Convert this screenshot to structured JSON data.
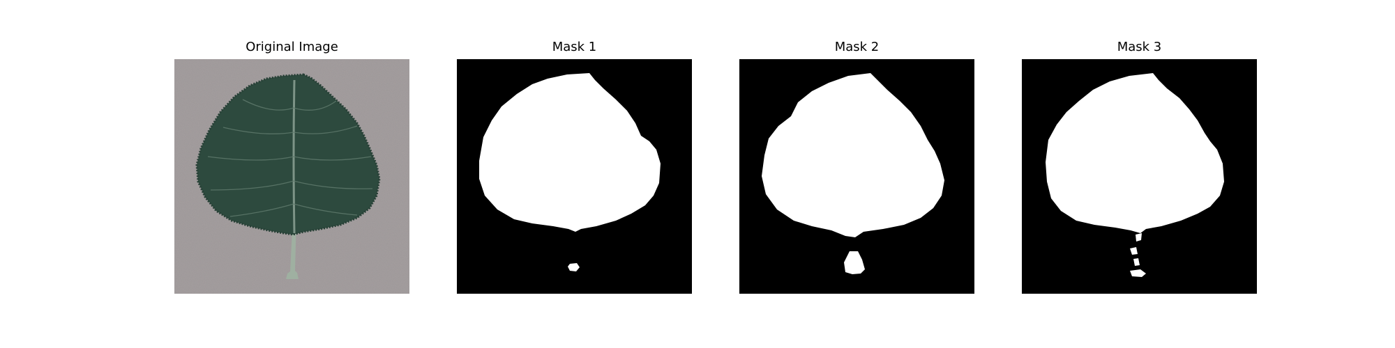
{
  "panels": [
    {
      "title": "Original Image",
      "kind": "photo"
    },
    {
      "title": "Mask 1",
      "kind": "mask"
    },
    {
      "title": "Mask 2",
      "kind": "mask"
    },
    {
      "title": "Mask 3",
      "kind": "mask"
    }
  ],
  "colors": {
    "background": "#a49e9f",
    "leaf": "#2d4a3e",
    "leaf_vein": "#7d9487",
    "stem": "#9fb0a1",
    "mask_background": "#000000",
    "mask_foreground": "#ffffff"
  },
  "icons": {
    "photo": "leaf-photo",
    "mask": "segmentation-mask"
  }
}
